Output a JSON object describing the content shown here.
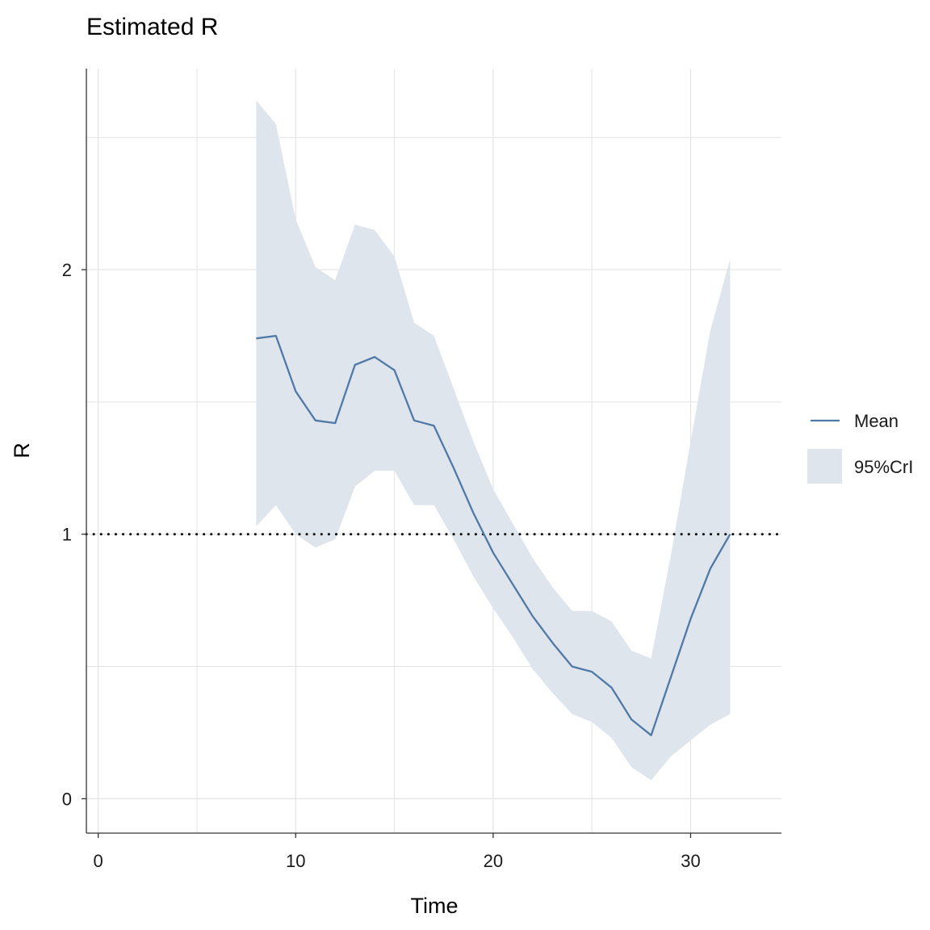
{
  "chart_data": {
    "type": "area",
    "title": "Estimated R",
    "xlabel": "Time",
    "ylabel": "R",
    "xlim": [
      -0.6,
      34.6
    ],
    "ylim": [
      -0.13,
      2.76
    ],
    "x_ticks": [
      0,
      10,
      20,
      30
    ],
    "y_ticks": [
      0,
      1,
      2
    ],
    "x_minor": [
      5,
      15,
      25
    ],
    "y_minor": [
      0.5,
      1.5,
      2.5
    ],
    "grid": true,
    "legend_position": "right",
    "colors": {
      "line": "#5079A8",
      "band": "#DEE5EC",
      "grid": "#E3E3E3",
      "axis": "#333333",
      "reference": "#000000"
    },
    "reference_line": {
      "y": 1,
      "style": "dotted"
    },
    "series": [
      {
        "name": "Mean",
        "kind": "line",
        "x": [
          8,
          9,
          10,
          11,
          12,
          13,
          14,
          15,
          16,
          17,
          18,
          19,
          20,
          21,
          22,
          23,
          24,
          25,
          26,
          27,
          28,
          29,
          30,
          31,
          32
        ],
        "y": [
          1.74,
          1.75,
          1.54,
          1.43,
          1.42,
          1.64,
          1.67,
          1.62,
          1.43,
          1.41,
          1.25,
          1.08,
          0.93,
          0.81,
          0.69,
          0.59,
          0.5,
          0.48,
          0.42,
          0.3,
          0.24,
          0.46,
          0.68,
          0.87,
          1.0
        ]
      },
      {
        "name": "95%CrI",
        "kind": "band",
        "x": [
          8,
          9,
          10,
          11,
          12,
          13,
          14,
          15,
          16,
          17,
          18,
          19,
          20,
          21,
          22,
          23,
          24,
          25,
          26,
          27,
          28,
          29,
          30,
          31,
          32
        ],
        "lower": [
          1.03,
          1.11,
          1.0,
          0.95,
          0.98,
          1.18,
          1.24,
          1.24,
          1.11,
          1.11,
          0.98,
          0.84,
          0.72,
          0.61,
          0.49,
          0.4,
          0.32,
          0.29,
          0.23,
          0.12,
          0.07,
          0.16,
          0.22,
          0.28,
          0.32
        ],
        "upper": [
          2.64,
          2.55,
          2.19,
          2.01,
          1.96,
          2.17,
          2.15,
          2.05,
          1.8,
          1.75,
          1.55,
          1.35,
          1.17,
          1.04,
          0.91,
          0.8,
          0.71,
          0.71,
          0.67,
          0.56,
          0.53,
          0.92,
          1.35,
          1.77,
          2.04
        ]
      }
    ],
    "legend": [
      {
        "label": "Mean",
        "kind": "line"
      },
      {
        "label": "95%CrI",
        "kind": "band"
      }
    ]
  }
}
